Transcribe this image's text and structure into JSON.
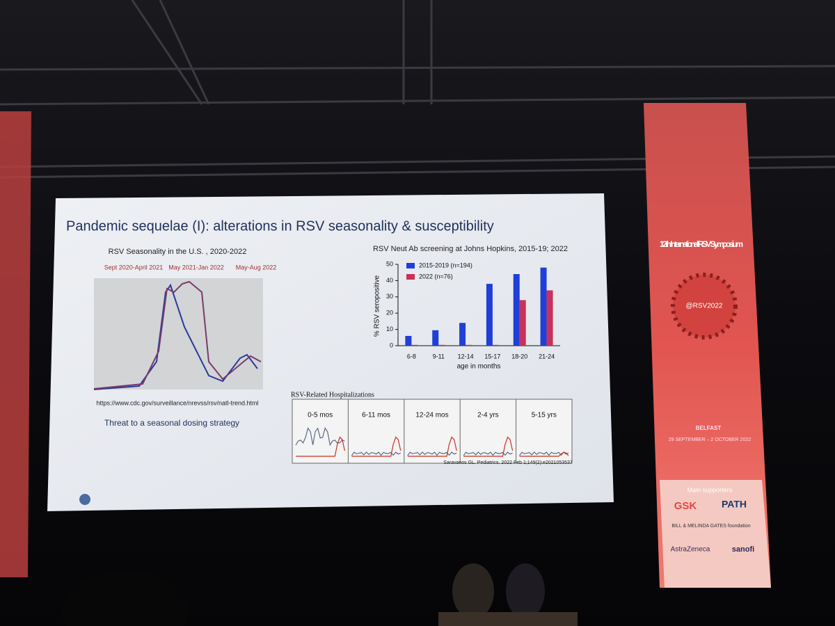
{
  "slide": {
    "title": "Pandemic sequelae (I):  alterations in RSV seasonality & susceptibility",
    "seasonality": {
      "title": "RSV Seasonality in the U.S. , 2020-2022",
      "periods": [
        "Sept 2020-April 2021",
        "May 2021-Jan 2022",
        "May-Aug 2022"
      ],
      "source": "https://www.cdc.gov/surveillance/nrevss/rsv/natl-trend.html",
      "note": "Threat to a seasonal dosing strategy"
    },
    "hospitalizations": {
      "title": "RSV-Related Hospitalizations",
      "panels": [
        "0-5 mos",
        "6-11 mos",
        "12-24 mos",
        "2-4 yrs",
        "5-15 yrs"
      ],
      "citation": "Saravanos GL. Pediatrics. 2022 Feb 1;149(2):e2021053537"
    }
  },
  "chart_data": {
    "type": "bar",
    "title": "RSV Neut Ab screening at Johns Hopkins, 2015-19; 2022",
    "x_label": "age in months",
    "y_label": "% RSV seropositive",
    "categories": [
      "6-8",
      "9-11",
      "12-14",
      "15-17",
      "18-20",
      "21-24"
    ],
    "series": [
      {
        "name": "2015-2019 (n=194)",
        "color": "#1f3fd6",
        "values": [
          6,
          9.5,
          14,
          38,
          44,
          48
        ]
      },
      {
        "name": "2022 (n=76)",
        "color": "#c8325a",
        "values": [
          0.5,
          0.5,
          0.5,
          0.5,
          28,
          34
        ]
      }
    ],
    "ylim": [
      0,
      50
    ],
    "yticks": [
      0,
      10,
      20,
      30,
      40,
      50
    ],
    "legend": "upper left"
  },
  "banner": {
    "title": "12th International RSV Symposium",
    "handle": "@RSV2022",
    "city": "BELFAST",
    "dates": "29 SEPTEMBER – 2 OCTOBER 2022",
    "supporters_heading": "Main supporters",
    "supporters": [
      "GSK",
      "PATH",
      "BILL & MELINDA GATES foundation",
      "AstraZeneca",
      "sanofi"
    ]
  }
}
